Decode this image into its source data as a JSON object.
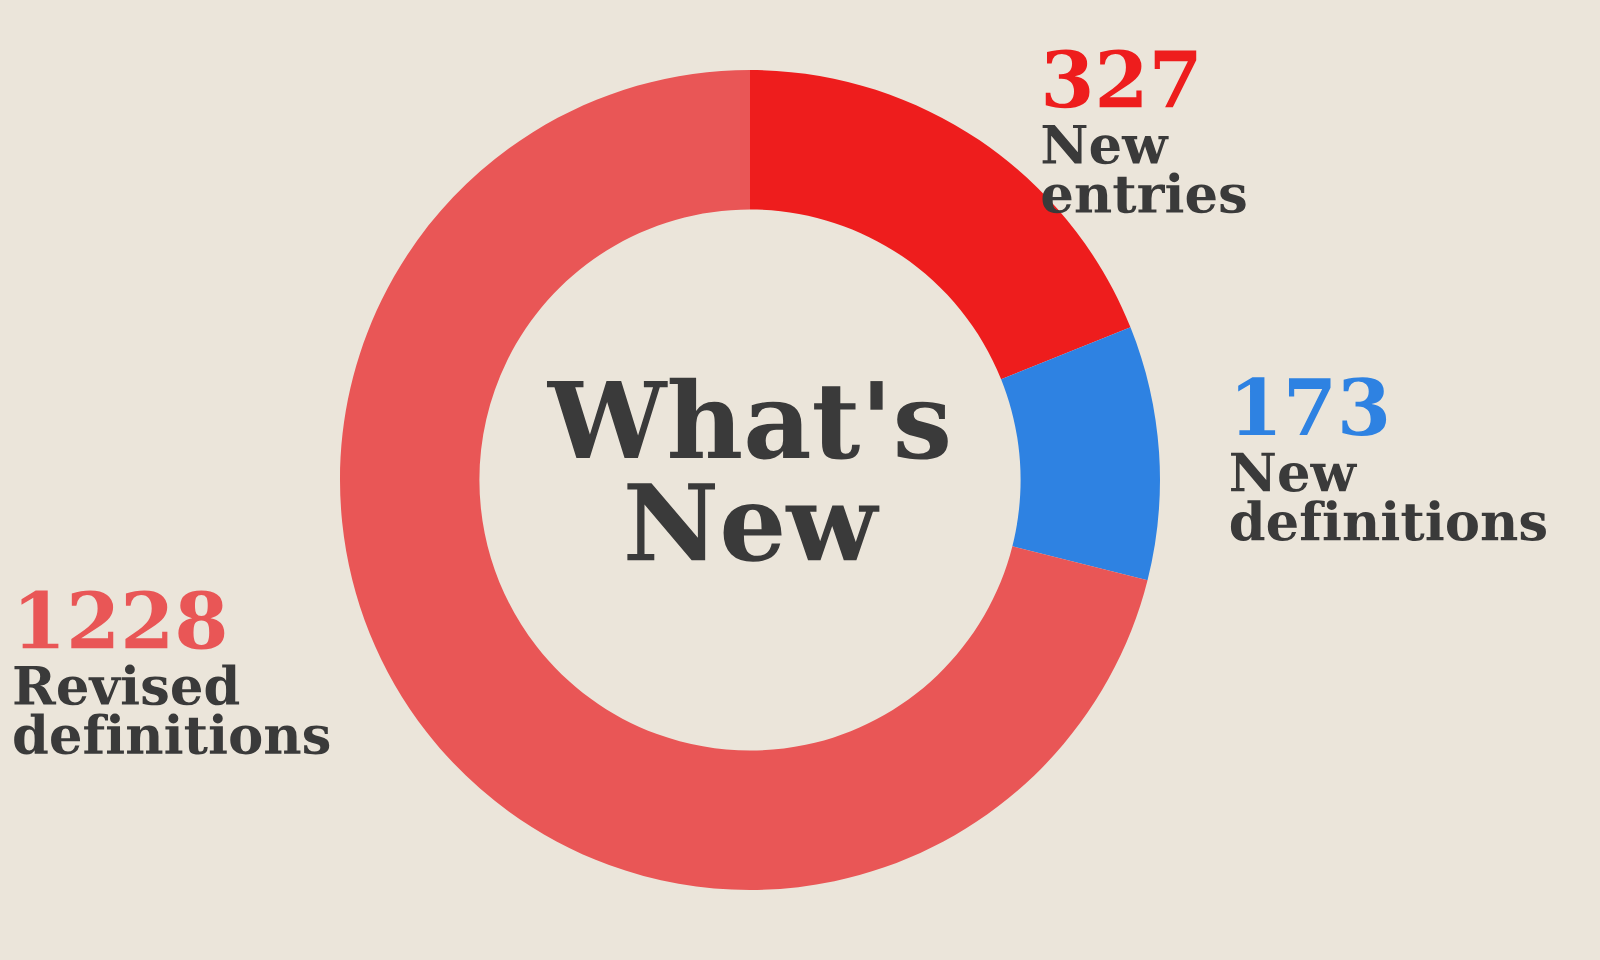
{
  "chart_data": {
    "type": "donut",
    "title": "What's New",
    "categories": [
      "New entries",
      "New definitions",
      "Revised definitions"
    ],
    "values": [
      327,
      173,
      1228
    ],
    "colors": [
      "#ee1d1d",
      "#2e82e2",
      "#e95656"
    ],
    "data_labels": true,
    "legend": false
  }
}
